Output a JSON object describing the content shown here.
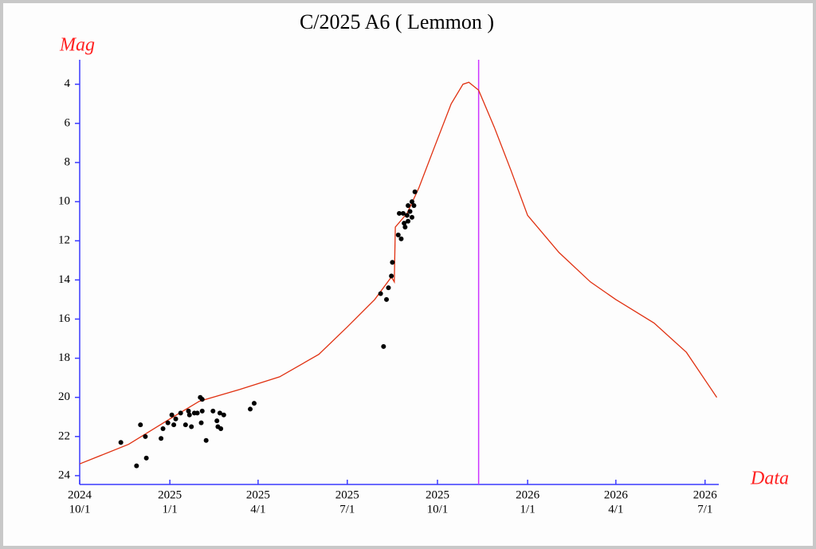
{
  "chart_data": {
    "type": "line",
    "title": "C/2025 A6 ( Lemmon )",
    "ylabel": "Mag",
    "xlabel": "Data",
    "xlim": [
      "2024-10-01",
      "2026-07-15"
    ],
    "ylim": [
      24.45,
      2.75
    ],
    "yticks": [
      4,
      6,
      8,
      10,
      12,
      14,
      16,
      18,
      20,
      22,
      24
    ],
    "xticks": [
      {
        "value": "2024-10-01",
        "label": [
          "2024",
          "10/1"
        ]
      },
      {
        "value": "2025-01-01",
        "label": [
          "2025",
          "1/1"
        ]
      },
      {
        "value": "2025-04-01",
        "label": [
          "2025",
          "4/1"
        ]
      },
      {
        "value": "2025-07-01",
        "label": [
          "2025",
          "7/1"
        ]
      },
      {
        "value": "2025-10-01",
        "label": [
          "2025",
          "10/1"
        ]
      },
      {
        "value": "2026-01-01",
        "label": [
          "2026",
          "1/1"
        ]
      },
      {
        "value": "2026-04-01",
        "label": [
          "2026",
          "4/1"
        ]
      },
      {
        "value": "2026-07-01",
        "label": [
          "2026",
          "7/1"
        ]
      }
    ],
    "axis_color": "#3a3aff",
    "label_color": "#ff2020",
    "vline": {
      "x": "2025-11-12",
      "color": "#cc33ff"
    },
    "series": [
      {
        "type": "line",
        "color": "#e03010",
        "x": [
          "2024-10-01",
          "2024-11-20",
          "2025-01-01",
          "2025-01-31",
          "2025-03-13",
          "2025-04-23",
          "2025-06-02",
          "2025-07-01",
          "2025-07-29",
          "2025-08-15",
          "2025-08-18",
          "2025-08-19",
          "2025-08-31",
          "2025-09-12",
          "2025-09-28",
          "2025-10-15",
          "2025-10-27",
          "2025-11-02",
          "2025-11-12",
          "2025-11-28",
          "2025-12-15",
          "2026-01-01",
          "2026-02-02",
          "2026-03-06",
          "2026-04-01",
          "2026-05-10",
          "2026-06-12",
          "2026-07-13"
        ],
        "values": [
          23.4,
          22.4,
          21.1,
          20.2,
          19.6,
          18.95,
          17.8,
          16.4,
          15.0,
          13.85,
          14.1,
          11.3,
          10.6,
          9.3,
          7.2,
          5.0,
          4.0,
          3.9,
          4.3,
          6.2,
          8.4,
          10.7,
          12.6,
          14.1,
          15.0,
          16.2,
          17.7,
          20.0
        ]
      },
      {
        "type": "scatter",
        "color": "#000000",
        "x": [
          "2024-11-12",
          "2024-11-28",
          "2024-12-02",
          "2024-12-07",
          "2024-12-08",
          "2024-12-23",
          "2024-12-25",
          "2024-12-30",
          "2025-01-03",
          "2025-01-05",
          "2025-01-07",
          "2025-01-12",
          "2025-01-17",
          "2025-01-20",
          "2025-01-21",
          "2025-01-23",
          "2025-01-26",
          "2025-01-29",
          "2025-02-01",
          "2025-02-02",
          "2025-02-03",
          "2025-02-03",
          "2025-02-07",
          "2025-02-14",
          "2025-02-18",
          "2025-02-19",
          "2025-02-21",
          "2025-02-22",
          "2025-02-25",
          "2025-03-24",
          "2025-03-28",
          "2025-08-04",
          "2025-08-07",
          "2025-08-10",
          "2025-08-12",
          "2025-08-15",
          "2025-08-16",
          "2025-08-22",
          "2025-08-23",
          "2025-08-25",
          "2025-08-27",
          "2025-08-28",
          "2025-08-29",
          "2025-08-31",
          "2025-09-01",
          "2025-09-01",
          "2025-09-03",
          "2025-09-05",
          "2025-09-05",
          "2025-09-07",
          "2025-09-08"
        ],
        "values": [
          22.3,
          23.5,
          21.4,
          22.0,
          23.1,
          22.1,
          21.6,
          21.3,
          20.9,
          21.4,
          21.1,
          20.8,
          21.4,
          20.7,
          20.9,
          21.5,
          20.8,
          20.8,
          20.0,
          21.3,
          20.1,
          20.7,
          22.2,
          20.7,
          21.2,
          21.5,
          20.8,
          21.6,
          20.9,
          20.6,
          20.3,
          14.7,
          17.4,
          15.0,
          14.4,
          13.8,
          13.1,
          11.7,
          10.6,
          11.9,
          10.6,
          11.1,
          11.3,
          10.7,
          10.2,
          11.0,
          10.5,
          10.0,
          10.8,
          10.2,
          9.5
        ]
      }
    ]
  }
}
